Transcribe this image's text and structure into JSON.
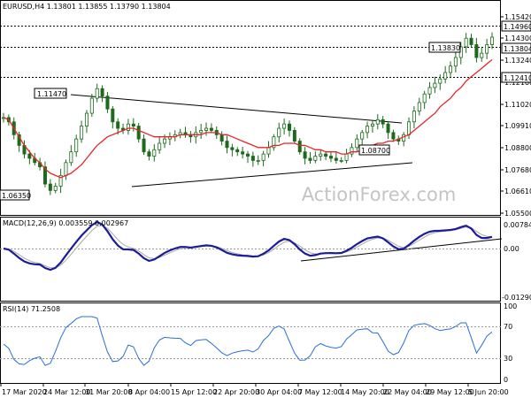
{
  "header": {
    "symbol_line": "EURUSD,H4  1.13801 1.13855 1.13790 1.13804",
    "macd_label": "MACD(12,26,9) 0.003559 0.002967",
    "rsi_label": "RSI(14) 71.2508"
  },
  "watermark": "ActionForex.com",
  "price_axis": {
    "ticks": [
      "1.15420",
      "1.14300",
      "1.13240",
      "1.12160",
      "1.11020",
      "1.09910",
      "1.08800",
      "1.07680",
      "1.06610",
      "1.05500"
    ],
    "hl_1": "1.14960",
    "hl_2": "1.13804",
    "hl_3": "1.12410"
  },
  "macd_axis": {
    "ticks": [
      "0.007841",
      "0.00",
      "-0.012906"
    ]
  },
  "rsi_axis": {
    "ticks": [
      "100",
      "70",
      "30",
      "0"
    ]
  },
  "annotations": {
    "a1": "1.11470",
    "a2": "1.06350",
    "a3": "1.08700",
    "a4": "1.13830"
  },
  "time_axis": {
    "ticks": [
      "17 Mar 2020",
      "24 Mar 12:00",
      "31 Mar 20:00",
      "8 Apr 04:00",
      "15 Apr 12:00",
      "22 Apr 20:00",
      "30 Apr 04:00",
      "7 May 12:00",
      "14 May 20:00",
      "22 May 04:00",
      "29 May 12:00",
      "5 Jun 20:00"
    ]
  },
  "chart_data": {
    "type": "candlestick",
    "ylim": [
      1.055,
      1.154
    ],
    "close": [
      1.1,
      1.098,
      1.092,
      1.087,
      1.083,
      1.081,
      1.079,
      1.077,
      1.069,
      1.066,
      1.068,
      1.073,
      1.079,
      1.084,
      1.09,
      1.096,
      1.102,
      1.109,
      1.1135,
      1.11,
      1.104,
      1.098,
      1.095,
      1.094,
      1.097,
      1.096,
      1.09,
      1.084,
      1.082,
      1.085,
      1.088,
      1.09,
      1.091,
      1.092,
      1.093,
      1.092,
      1.091,
      1.093,
      1.094,
      1.095,
      1.094,
      1.092,
      1.089,
      1.086,
      1.085,
      1.084,
      1.083,
      1.082,
      1.08,
      1.08,
      1.083,
      1.086,
      1.091,
      1.095,
      1.097,
      1.094,
      1.089,
      1.084,
      1.081,
      1.08,
      1.082,
      1.083,
      1.082,
      1.081,
      1.08,
      1.08,
      1.083,
      1.086,
      1.09,
      1.093,
      1.096,
      1.097,
      1.099,
      1.097,
      1.093,
      1.09,
      1.089,
      1.092,
      1.098,
      1.103,
      1.107,
      1.111,
      1.114,
      1.116,
      1.118,
      1.121,
      1.124,
      1.128,
      1.133,
      1.137,
      1.134,
      1.128,
      1.13,
      1.134,
      1.1375
    ],
    "series": [
      {
        "name": "",
        "values": [
          1.1,
          1.099,
          1.095,
          1.091,
          1.087,
          1.084,
          1.081,
          1.079,
          1.076,
          1.074,
          1.073,
          1.072,
          1.073,
          1.074,
          1.076,
          1.078,
          1.081,
          1.084,
          1.087,
          1.089,
          1.091,
          1.092,
          1.093,
          1.094,
          1.095,
          1.095,
          1.094,
          1.093,
          1.092,
          1.091,
          1.091,
          1.091,
          1.091,
          1.091,
          1.092,
          1.092,
          1.092,
          1.092,
          1.092,
          1.093,
          1.093,
          1.093,
          1.092,
          1.092,
          1.091,
          1.09,
          1.089,
          1.088,
          1.087,
          1.086,
          1.086,
          1.086,
          1.087,
          1.087,
          1.088,
          1.088,
          1.088,
          1.087,
          1.087,
          1.086,
          1.085,
          1.085,
          1.084,
          1.084,
          1.084,
          1.083,
          1.083,
          1.084,
          1.084,
          1.085,
          1.086,
          1.087,
          1.088,
          1.088,
          1.089,
          1.089,
          1.09,
          1.091,
          1.092,
          1.094,
          1.096,
          1.098,
          1.1,
          1.102,
          1.105,
          1.107,
          1.109,
          1.112,
          1.114,
          1.117,
          1.119,
          1.121,
          1.123,
          1.125,
          1.127
        ]
      }
    ]
  }
}
